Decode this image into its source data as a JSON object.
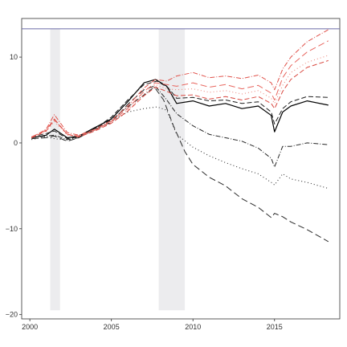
{
  "chart_data": {
    "type": "line",
    "title": "",
    "xlabel": "",
    "ylabel": "",
    "xlim": [
      1999.5,
      2019.0
    ],
    "ylim": [
      -20.5,
      14.5
    ],
    "x_ticks": [
      2000,
      2005,
      2010,
      2015
    ],
    "x_tick_labels": [
      "2000",
      "2005",
      "2010",
      "2015"
    ],
    "y_ticks": [
      -20,
      -10,
      0,
      10
    ],
    "y_tick_labels": [
      "−20",
      "−10",
      "0",
      "10"
    ],
    "grid": false,
    "legend": "none",
    "reference_line": {
      "y": 13.3,
      "color": "#6b6ba8"
    },
    "shaded_regions": [
      {
        "x_start": 2001.25,
        "x_end": 2001.85,
        "y_start": -19.5,
        "y_end": 13.3,
        "color": "#ececee"
      },
      {
        "x_start": 2007.9,
        "x_end": 2009.5,
        "y_start": -19.5,
        "y_end": 13.3,
        "color": "#ececee"
      }
    ],
    "series": [
      {
        "color": "#000000",
        "dash": "",
        "width": 1.2,
        "points": [
          [
            2000.1,
            0.6
          ],
          [
            2001,
            0.9
          ],
          [
            2001.5,
            1.6
          ],
          [
            2002.3,
            0.6
          ],
          [
            2003,
            0.8
          ],
          [
            2004,
            1.8
          ],
          [
            2005,
            2.8
          ],
          [
            2006,
            4.8
          ],
          [
            2007,
            7.0
          ],
          [
            2007.7,
            7.4
          ],
          [
            2008.4,
            6.6
          ],
          [
            2009,
            4.6
          ],
          [
            2010,
            4.9
          ],
          [
            2011,
            4.3
          ],
          [
            2012,
            4.6
          ],
          [
            2013,
            4.0
          ],
          [
            2014,
            4.3
          ],
          [
            2014.8,
            3.2
          ],
          [
            2015,
            1.3
          ],
          [
            2015.5,
            3.6
          ],
          [
            2016,
            4.3
          ],
          [
            2017,
            4.9
          ],
          [
            2018.3,
            4.4
          ]
        ]
      },
      {
        "color": "#1e1e1e",
        "dash": "6,3",
        "width": 1.0,
        "points": [
          [
            2000.1,
            0.7
          ],
          [
            2001,
            1.1
          ],
          [
            2001.5,
            1.4
          ],
          [
            2002.3,
            0.5
          ],
          [
            2003,
            0.7
          ],
          [
            2004,
            1.7
          ],
          [
            2005,
            3.0
          ],
          [
            2006,
            5.0
          ],
          [
            2007,
            6.8
          ],
          [
            2007.8,
            7.2
          ],
          [
            2008.5,
            6.4
          ],
          [
            2009,
            5.2
          ],
          [
            2010,
            5.3
          ],
          [
            2011,
            4.9
          ],
          [
            2012,
            5.0
          ],
          [
            2013,
            4.6
          ],
          [
            2014,
            4.8
          ],
          [
            2014.8,
            3.6
          ],
          [
            2015,
            2.2
          ],
          [
            2015.5,
            4.0
          ],
          [
            2016,
            4.8
          ],
          [
            2017,
            5.4
          ],
          [
            2018.3,
            5.3
          ]
        ]
      },
      {
        "color": "#2a2a2a",
        "dash": "8,4",
        "width": 1.0,
        "points": [
          [
            2000.1,
            0.5
          ],
          [
            2001,
            0.6
          ],
          [
            2001.5,
            0.8
          ],
          [
            2002.3,
            0.2
          ],
          [
            2003,
            0.6
          ],
          [
            2004,
            1.6
          ],
          [
            2005,
            2.4
          ],
          [
            2006,
            4.5
          ],
          [
            2007,
            6.2
          ],
          [
            2007.6,
            6.6
          ],
          [
            2008.2,
            5.0
          ],
          [
            2008.8,
            2.0
          ],
          [
            2009.5,
            -1.0
          ],
          [
            2010,
            -2.5
          ],
          [
            2011,
            -4.0
          ],
          [
            2012,
            -5.0
          ],
          [
            2013,
            -6.5
          ],
          [
            2014,
            -7.5
          ],
          [
            2014.8,
            -8.7
          ],
          [
            2015,
            -8.2
          ],
          [
            2015.5,
            -8.6
          ],
          [
            2016,
            -9.2
          ],
          [
            2017,
            -10.1
          ],
          [
            2018.3,
            -11.5
          ]
        ]
      },
      {
        "color": "#333333",
        "dash": "1,3",
        "width": 1.1,
        "points": [
          [
            2000.1,
            0.4
          ],
          [
            2001,
            0.7
          ],
          [
            2001.5,
            0.5
          ],
          [
            2002.3,
            0.3
          ],
          [
            2003,
            0.7
          ],
          [
            2004,
            1.5
          ],
          [
            2005,
            2.5
          ],
          [
            2006,
            3.6
          ],
          [
            2007,
            4.0
          ],
          [
            2007.8,
            4.2
          ],
          [
            2008.4,
            3.8
          ],
          [
            2009,
            1.0
          ],
          [
            2010,
            -0.5
          ],
          [
            2011,
            -1.5
          ],
          [
            2012,
            -2.3
          ],
          [
            2013,
            -3.0
          ],
          [
            2014,
            -3.6
          ],
          [
            2014.8,
            -4.6
          ],
          [
            2015,
            -4.9
          ],
          [
            2015.5,
            -3.6
          ],
          [
            2016,
            -4.2
          ],
          [
            2017,
            -4.6
          ],
          [
            2018.3,
            -5.3
          ]
        ]
      },
      {
        "color": "#262626",
        "dash": "6,2,1,2",
        "width": 1.0,
        "points": [
          [
            2000.1,
            0.6
          ],
          [
            2001,
            0.8
          ],
          [
            2001.5,
            0.9
          ],
          [
            2002.3,
            0.4
          ],
          [
            2003,
            0.6
          ],
          [
            2004,
            1.7
          ],
          [
            2005,
            2.7
          ],
          [
            2006,
            4.2
          ],
          [
            2007,
            5.6
          ],
          [
            2007.7,
            6.6
          ],
          [
            2008.4,
            5.0
          ],
          [
            2009,
            3.4
          ],
          [
            2010,
            2.0
          ],
          [
            2011,
            1.0
          ],
          [
            2012,
            0.6
          ],
          [
            2013,
            0.2
          ],
          [
            2014,
            -0.6
          ],
          [
            2014.8,
            -1.8
          ],
          [
            2015,
            -2.8
          ],
          [
            2015.5,
            -0.4
          ],
          [
            2016,
            -0.4
          ],
          [
            2017,
            0.0
          ],
          [
            2018.3,
            -0.2
          ]
        ]
      },
      {
        "color": "#e0524b",
        "dash": "6,2,1,2",
        "width": 1.0,
        "points": [
          [
            2000.1,
            0.6
          ],
          [
            2001,
            1.6
          ],
          [
            2001.5,
            3.3
          ],
          [
            2002.3,
            1.2
          ],
          [
            2003,
            0.9
          ],
          [
            2004,
            1.6
          ],
          [
            2005,
            2.6
          ],
          [
            2006,
            4.3
          ],
          [
            2007,
            6.4
          ],
          [
            2007.7,
            7.4
          ],
          [
            2008.4,
            7.2
          ],
          [
            2009,
            7.8
          ],
          [
            2010,
            8.2
          ],
          [
            2011,
            7.6
          ],
          [
            2012,
            7.8
          ],
          [
            2013,
            7.5
          ],
          [
            2014,
            7.9
          ],
          [
            2014.8,
            7.0
          ],
          [
            2015,
            6.2
          ],
          [
            2015.5,
            8.6
          ],
          [
            2016,
            10.0
          ],
          [
            2017,
            11.8
          ],
          [
            2018.3,
            13.2
          ]
        ]
      },
      {
        "color": "#e8665f",
        "dash": "8,4",
        "width": 1.0,
        "points": [
          [
            2000.1,
            0.7
          ],
          [
            2001,
            1.5
          ],
          [
            2001.5,
            2.8
          ],
          [
            2002.3,
            1.0
          ],
          [
            2003,
            0.8
          ],
          [
            2004,
            1.5
          ],
          [
            2005,
            2.5
          ],
          [
            2006,
            4.0
          ],
          [
            2007,
            6.0
          ],
          [
            2007.7,
            7.0
          ],
          [
            2008.4,
            6.8
          ],
          [
            2009,
            6.6
          ],
          [
            2010,
            7.0
          ],
          [
            2011,
            6.5
          ],
          [
            2012,
            6.8
          ],
          [
            2013,
            6.3
          ],
          [
            2014,
            6.7
          ],
          [
            2014.8,
            5.8
          ],
          [
            2015,
            5.0
          ],
          [
            2015.5,
            7.6
          ],
          [
            2016,
            9.0
          ],
          [
            2017,
            10.6
          ],
          [
            2018.3,
            11.9
          ]
        ]
      },
      {
        "color": "#ef8a80",
        "dash": "1,3",
        "width": 1.1,
        "points": [
          [
            2000.1,
            0.6
          ],
          [
            2001,
            1.3
          ],
          [
            2001.5,
            2.5
          ],
          [
            2002.3,
            0.9
          ],
          [
            2003,
            0.8
          ],
          [
            2004,
            1.5
          ],
          [
            2005,
            2.4
          ],
          [
            2006,
            3.8
          ],
          [
            2007,
            5.7
          ],
          [
            2007.7,
            6.8
          ],
          [
            2008.4,
            6.3
          ],
          [
            2009,
            6.2
          ],
          [
            2010,
            6.3
          ],
          [
            2011,
            5.9
          ],
          [
            2012,
            6.1
          ],
          [
            2013,
            5.7
          ],
          [
            2014,
            6.1
          ],
          [
            2014.8,
            5.2
          ],
          [
            2015,
            4.6
          ],
          [
            2015.5,
            6.7
          ],
          [
            2016,
            8.2
          ],
          [
            2017,
            9.4
          ],
          [
            2018.3,
            10.2
          ]
        ]
      },
      {
        "color": "#d94840",
        "dash": "6,3",
        "width": 1.0,
        "points": [
          [
            2000.1,
            0.6
          ],
          [
            2001,
            1.4
          ],
          [
            2001.5,
            2.7
          ],
          [
            2002.3,
            1.0
          ],
          [
            2003,
            0.7
          ],
          [
            2004,
            1.4
          ],
          [
            2005,
            2.3
          ],
          [
            2006,
            3.7
          ],
          [
            2007,
            5.5
          ],
          [
            2007.7,
            6.5
          ],
          [
            2008.4,
            6.0
          ],
          [
            2009,
            5.5
          ],
          [
            2010,
            5.6
          ],
          [
            2011,
            5.1
          ],
          [
            2012,
            5.4
          ],
          [
            2013,
            5.0
          ],
          [
            2014,
            5.4
          ],
          [
            2014.8,
            4.6
          ],
          [
            2015,
            4.0
          ],
          [
            2015.5,
            6.0
          ],
          [
            2016,
            7.4
          ],
          [
            2017,
            8.8
          ],
          [
            2018.3,
            9.6
          ]
        ]
      }
    ]
  }
}
